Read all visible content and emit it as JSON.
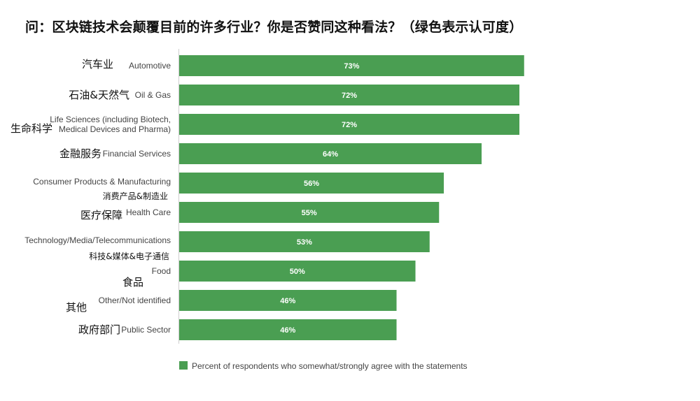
{
  "title": "问：区块链技术会颠覆目前的许多行业？你是否赞同这种看法？（绿色表示认可度）",
  "colors": {
    "bar": "#4a9e52",
    "axis": "#cfcfcf"
  },
  "chart_data": {
    "type": "bar",
    "orientation": "horizontal",
    "xlim": [
      0,
      100
    ],
    "categories_en": [
      [
        "Automotive"
      ],
      [
        "Oil & Gas"
      ],
      [
        "Life Sciences (including Biotech,",
        "Medical Devices and Pharma)"
      ],
      [
        "Financial Services"
      ],
      [
        "Consumer Products & Manufacturing"
      ],
      [
        "Health Care"
      ],
      [
        "Technology/Media/Telecommunications"
      ],
      [
        "Food"
      ],
      [
        "Other/Not identified"
      ],
      [
        "Public Sector"
      ]
    ],
    "categories_zh": [
      "汽车业",
      "石油&天然气",
      "生命科学",
      "金融服务",
      "消费产品&制造业",
      "医疗保障",
      "科技&媒体&电子通信",
      "食品",
      "其他",
      "政府部门"
    ],
    "values": [
      73,
      72,
      72,
      64,
      56,
      55,
      53,
      50,
      46,
      46
    ],
    "value_labels": [
      "73%",
      "72%",
      "72%",
      "64%",
      "56%",
      "55%",
      "53%",
      "50%",
      "46%",
      "46%"
    ],
    "legend": "Percent of respondents who somewhat/strongly agree with the statements"
  }
}
